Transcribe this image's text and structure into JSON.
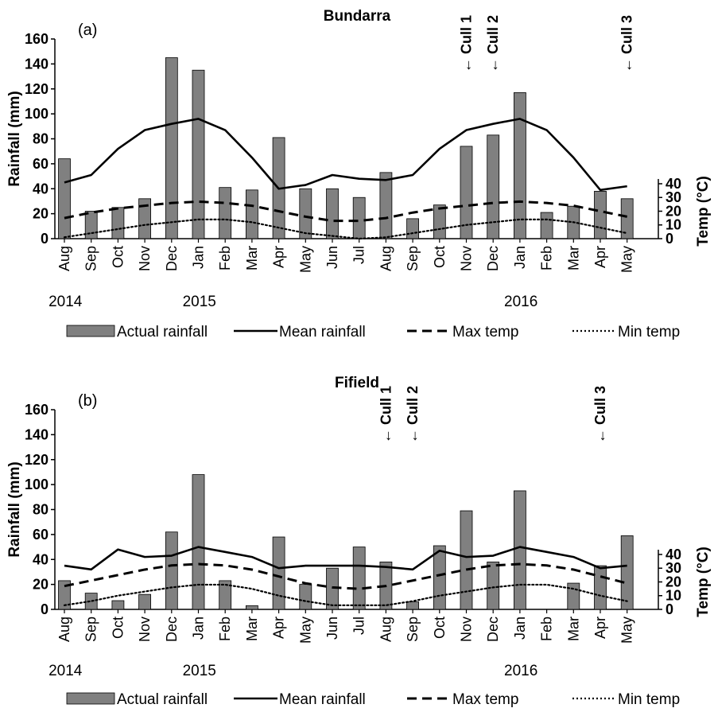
{
  "figure": {
    "months": [
      "Aug",
      "Sep",
      "Oct",
      "Nov",
      "Dec",
      "Jan",
      "Feb",
      "Mar",
      "Apr",
      "May",
      "Jun",
      "Jul",
      "Aug",
      "Sep",
      "Oct",
      "Nov",
      "Dec",
      "Jan",
      "Feb",
      "Mar",
      "Apr",
      "May"
    ],
    "years": [
      {
        "label": "2014",
        "month_index": 0.3
      },
      {
        "label": "2015",
        "month_index": 5.3
      },
      {
        "label": "2016",
        "month_index": 17.3
      }
    ],
    "colors": {
      "bar": "#808080",
      "line": "#000000"
    },
    "legend": [
      {
        "key": "actual",
        "label": "Actual rainfall",
        "style": "bar"
      },
      {
        "key": "mean",
        "label": "Mean rainfall",
        "style": "solid"
      },
      {
        "key": "max",
        "label": "Max temp",
        "style": "dashed"
      },
      {
        "key": "min",
        "label": "Min temp",
        "style": "dotted"
      }
    ]
  },
  "chart_data": [
    {
      "type": "bar",
      "panel_label": "(a)",
      "title": "Bundarra",
      "categories": [
        "Aug",
        "Sep",
        "Oct",
        "Nov",
        "Dec",
        "Jan",
        "Feb",
        "Mar",
        "Apr",
        "May",
        "Jun",
        "Jul",
        "Aug",
        "Sep",
        "Oct",
        "Nov",
        "Dec",
        "Jan",
        "Feb",
        "Mar",
        "Apr",
        "May"
      ],
      "ylabel": "Rainfall (mm)",
      "y2label": "Temp (°C)",
      "ylim": [
        0,
        160
      ],
      "yticks": [
        0,
        20,
        40,
        60,
        80,
        100,
        120,
        140,
        160
      ],
      "y2lim": [
        0,
        40
      ],
      "y2ticks": [
        0,
        10,
        20,
        30,
        40
      ],
      "series": [
        {
          "name": "Actual rainfall",
          "axis": "left",
          "style": "bar",
          "values": [
            64,
            22,
            25,
            32,
            145,
            135,
            41,
            39,
            81,
            40,
            40,
            33,
            53,
            16,
            27,
            74,
            83,
            117,
            21,
            26,
            38,
            32
          ]
        },
        {
          "name": "Mean rainfall",
          "axis": "left",
          "style": "solid",
          "values": [
            45,
            51,
            72,
            87,
            92,
            96,
            87,
            65,
            40,
            43,
            51,
            48,
            47,
            51,
            72,
            87,
            92,
            96,
            87,
            65,
            39,
            42
          ]
        },
        {
          "name": "Max temp",
          "axis": "right",
          "style": "dashed",
          "values": [
            15,
            19,
            22,
            24,
            26,
            27,
            26,
            24,
            20,
            16,
            13,
            13,
            15,
            19,
            22,
            24,
            26,
            27,
            26,
            24,
            20,
            16
          ]
        },
        {
          "name": "Min temp",
          "axis": "right",
          "style": "dotted",
          "values": [
            1,
            4,
            7,
            10,
            12,
            14,
            14,
            12,
            8,
            4,
            2,
            0,
            1,
            4,
            7,
            10,
            12,
            14,
            14,
            12,
            8,
            4
          ]
        }
      ],
      "annotations": [
        {
          "text": "← Cull 1",
          "month_index": 15
        },
        {
          "text": "← Cull 2",
          "month_index": 16
        },
        {
          "text": "← Cull 3",
          "month_index": 21
        }
      ],
      "legend_position": "bottom"
    },
    {
      "type": "bar",
      "panel_label": "(b)",
      "title": "Fifield",
      "categories": [
        "Aug",
        "Sep",
        "Oct",
        "Nov",
        "Dec",
        "Jan",
        "Feb",
        "Mar",
        "Apr",
        "May",
        "Jun",
        "Jul",
        "Aug",
        "Sep",
        "Oct",
        "Nov",
        "Dec",
        "Jan",
        "Feb",
        "Mar",
        "Apr",
        "May"
      ],
      "ylabel": "Rainfall (mm)",
      "y2label": "Temp (°C)",
      "ylim": [
        0,
        160
      ],
      "yticks": [
        0,
        20,
        40,
        60,
        80,
        100,
        120,
        140,
        160
      ],
      "y2lim": [
        0,
        40
      ],
      "y2ticks": [
        0,
        10,
        20,
        30,
        40
      ],
      "series": [
        {
          "name": "Actual rainfall",
          "axis": "left",
          "style": "bar",
          "values": [
            23,
            13,
            7,
            12,
            62,
            108,
            23,
            3,
            58,
            20,
            33,
            50,
            38,
            6,
            51,
            79,
            38,
            95,
            0,
            21,
            35,
            59
          ]
        },
        {
          "name": "Mean rainfall",
          "axis": "left",
          "style": "solid",
          "values": [
            35,
            32,
            48,
            42,
            43,
            50,
            46,
            42,
            33,
            35,
            35,
            35,
            34,
            32,
            47,
            42,
            43,
            50,
            46,
            42,
            33,
            35
          ]
        },
        {
          "name": "Max temp",
          "axis": "right",
          "style": "dashed",
          "values": [
            17,
            21,
            25,
            29,
            32,
            33,
            32,
            29,
            24,
            19,
            16,
            15,
            17,
            21,
            25,
            29,
            32,
            33,
            32,
            29,
            24,
            19
          ]
        },
        {
          "name": "Min temp",
          "axis": "right",
          "style": "dotted",
          "values": [
            3,
            6,
            10,
            13,
            16,
            18,
            18,
            15,
            10,
            6,
            3,
            3,
            3,
            6,
            10,
            13,
            16,
            18,
            18,
            15,
            10,
            6
          ]
        }
      ],
      "annotations": [
        {
          "text": "← Cull 1",
          "month_index": 12
        },
        {
          "text": "← Cull 2",
          "month_index": 13
        },
        {
          "text": "← Cull 3",
          "month_index": 20
        }
      ],
      "legend_position": "bottom"
    }
  ]
}
